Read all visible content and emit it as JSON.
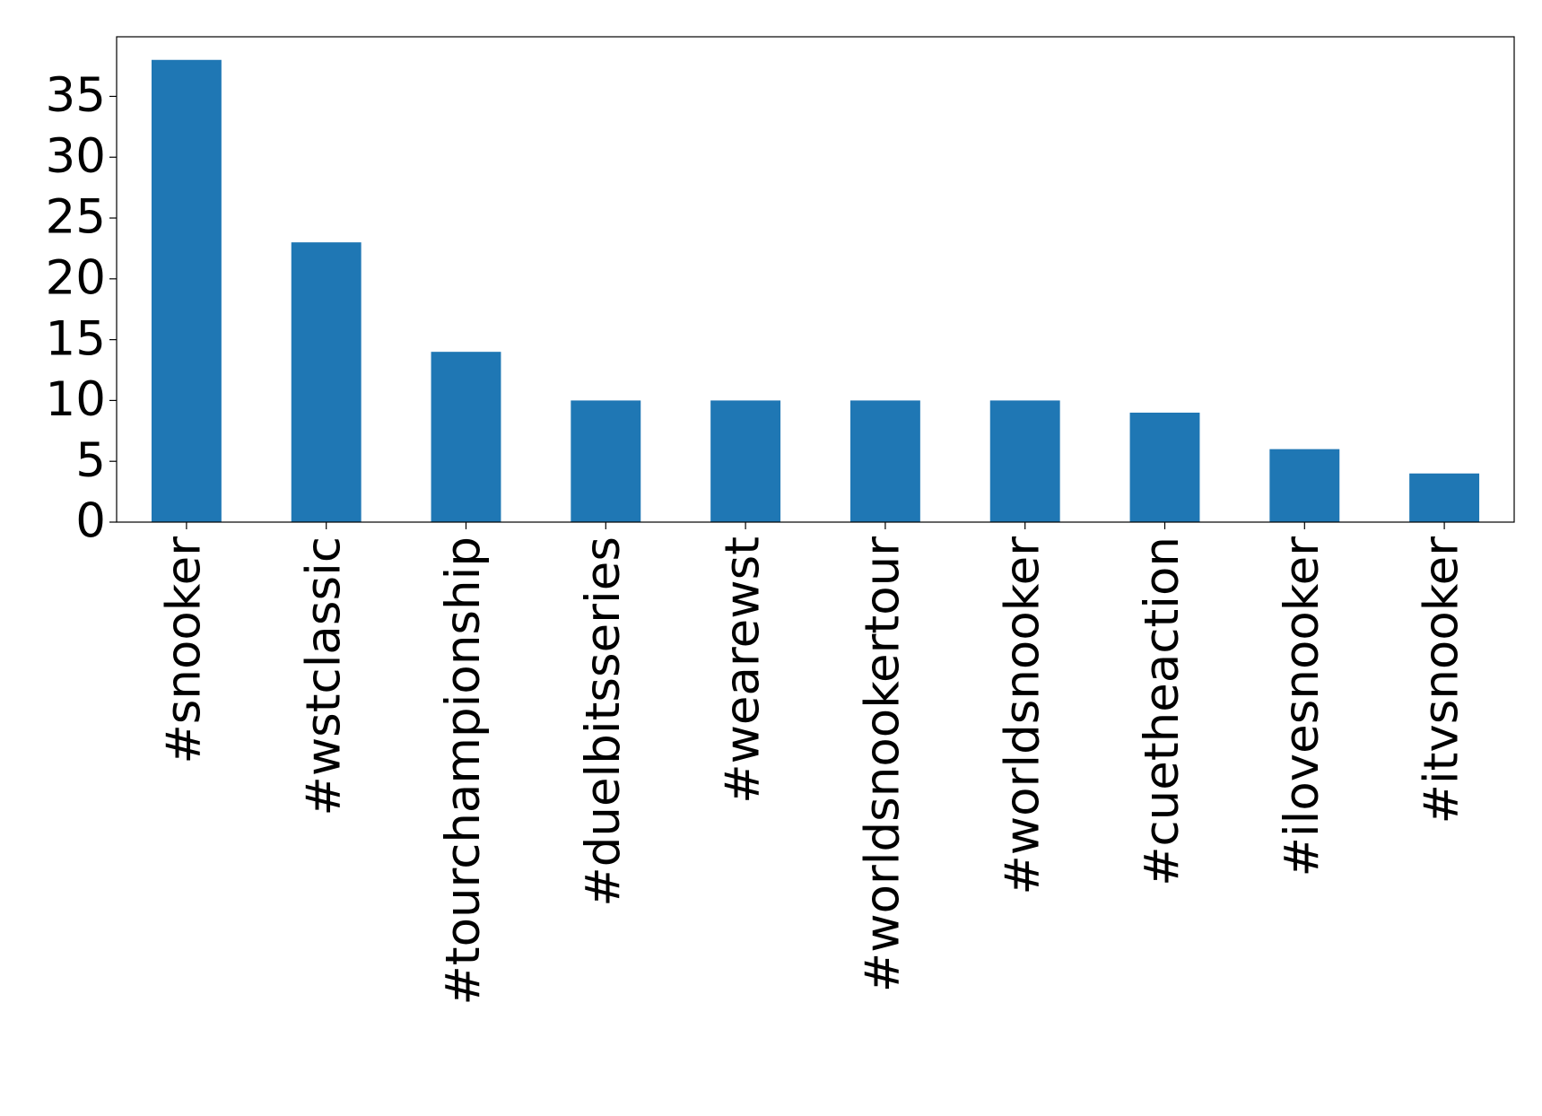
{
  "chart_data": {
    "type": "bar",
    "categories": [
      "#snooker",
      "#wstclassic",
      "#tourchampionship",
      "#duelbitsseries",
      "#wearewst",
      "#worldsnookertour",
      "#worldsnooker",
      "#cuetheaction",
      "#ilovesnooker",
      "#itvsnooker"
    ],
    "values": [
      38,
      23,
      14,
      10,
      10,
      10,
      10,
      9,
      6,
      4
    ],
    "color": "#1f77b4",
    "ylim": [
      0,
      39.9
    ],
    "yticks": [
      0,
      5,
      10,
      15,
      20,
      25,
      30,
      35
    ],
    "grid": false
  }
}
